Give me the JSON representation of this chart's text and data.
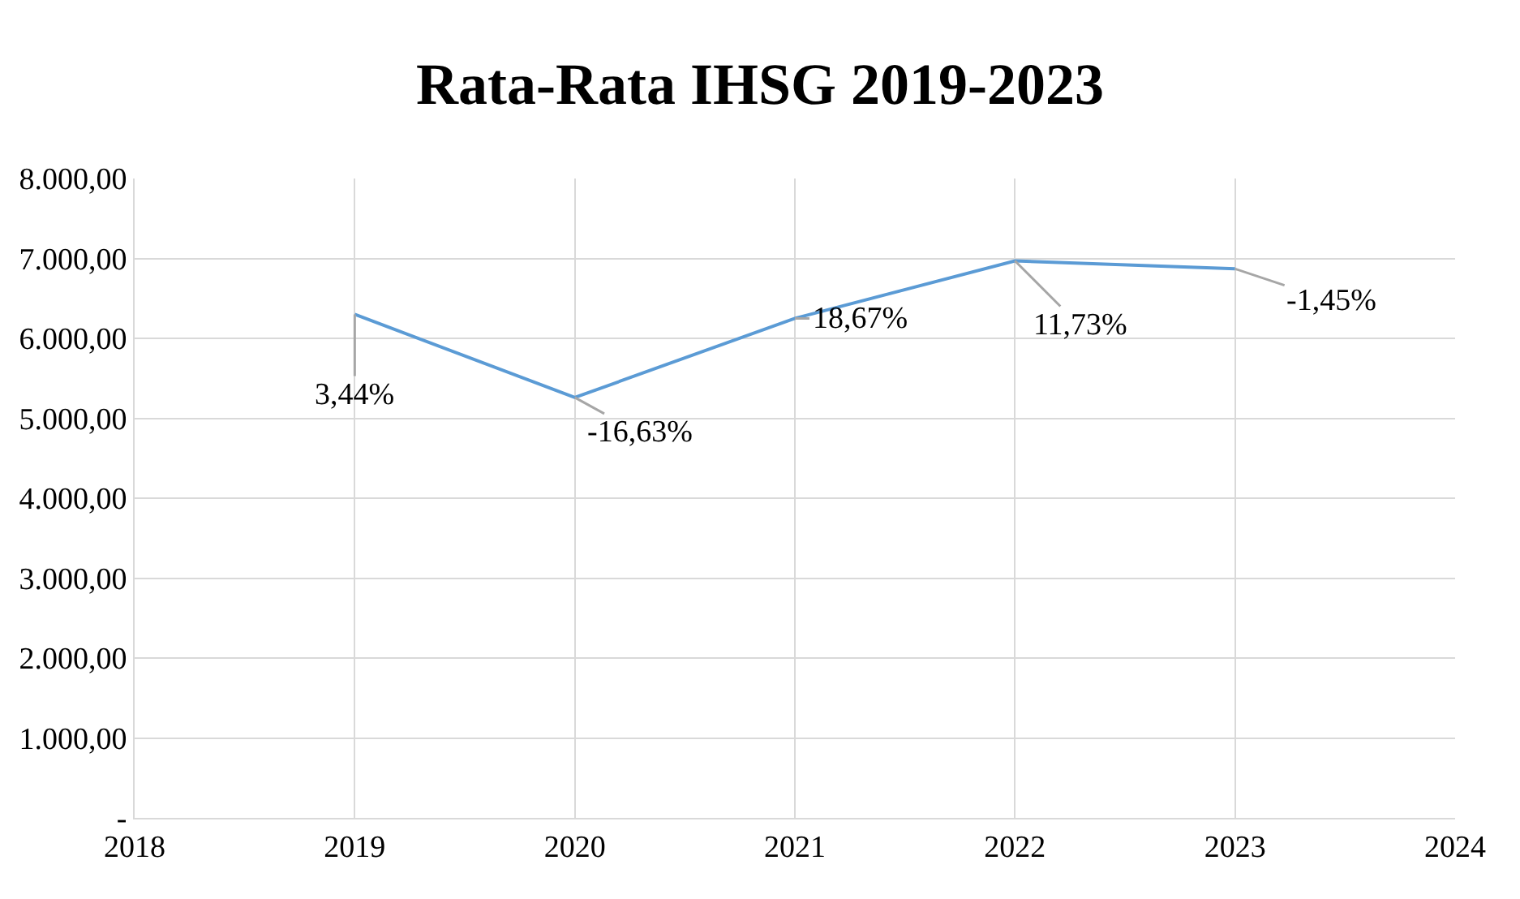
{
  "chart_data": {
    "type": "line",
    "title": "Rata-Rata IHSG 2019-2023",
    "x": [
      2019,
      2020,
      2021,
      2022,
      2023
    ],
    "series": [
      {
        "color": "#5b9bd5",
        "values": [
          6300,
          5260,
          6250,
          6970,
          6870
        ]
      }
    ],
    "annotations": [
      {
        "text": "3,44%",
        "x": 2019,
        "y": 6300
      },
      {
        "text": "-16,63%",
        "x": 2020,
        "y": 5260
      },
      {
        "text": "18,67%",
        "x": 2021,
        "y": 6250
      },
      {
        "text": "11,73%",
        "x": 2022,
        "y": 6970
      },
      {
        "text": "-1,45%",
        "x": 2023,
        "y": 6870
      }
    ],
    "xlim": [
      2018,
      2024
    ],
    "xticks": [
      2018,
      2019,
      2020,
      2021,
      2022,
      2023,
      2024
    ],
    "ylim": [
      0,
      8000
    ],
    "yticks": [
      {
        "value": 0,
        "label": "-"
      },
      {
        "value": 1000,
        "label": "1.000,00"
      },
      {
        "value": 2000,
        "label": "2.000,00"
      },
      {
        "value": 3000,
        "label": "3.000,00"
      },
      {
        "value": 4000,
        "label": "4.000,00"
      },
      {
        "value": 5000,
        "label": "5.000,00"
      },
      {
        "value": 6000,
        "label": "6.000,00"
      },
      {
        "value": 7000,
        "label": "7.000,00"
      },
      {
        "value": 8000,
        "label": "8.000,00"
      }
    ],
    "grid": true,
    "marker": "none",
    "line_style": "solid"
  }
}
